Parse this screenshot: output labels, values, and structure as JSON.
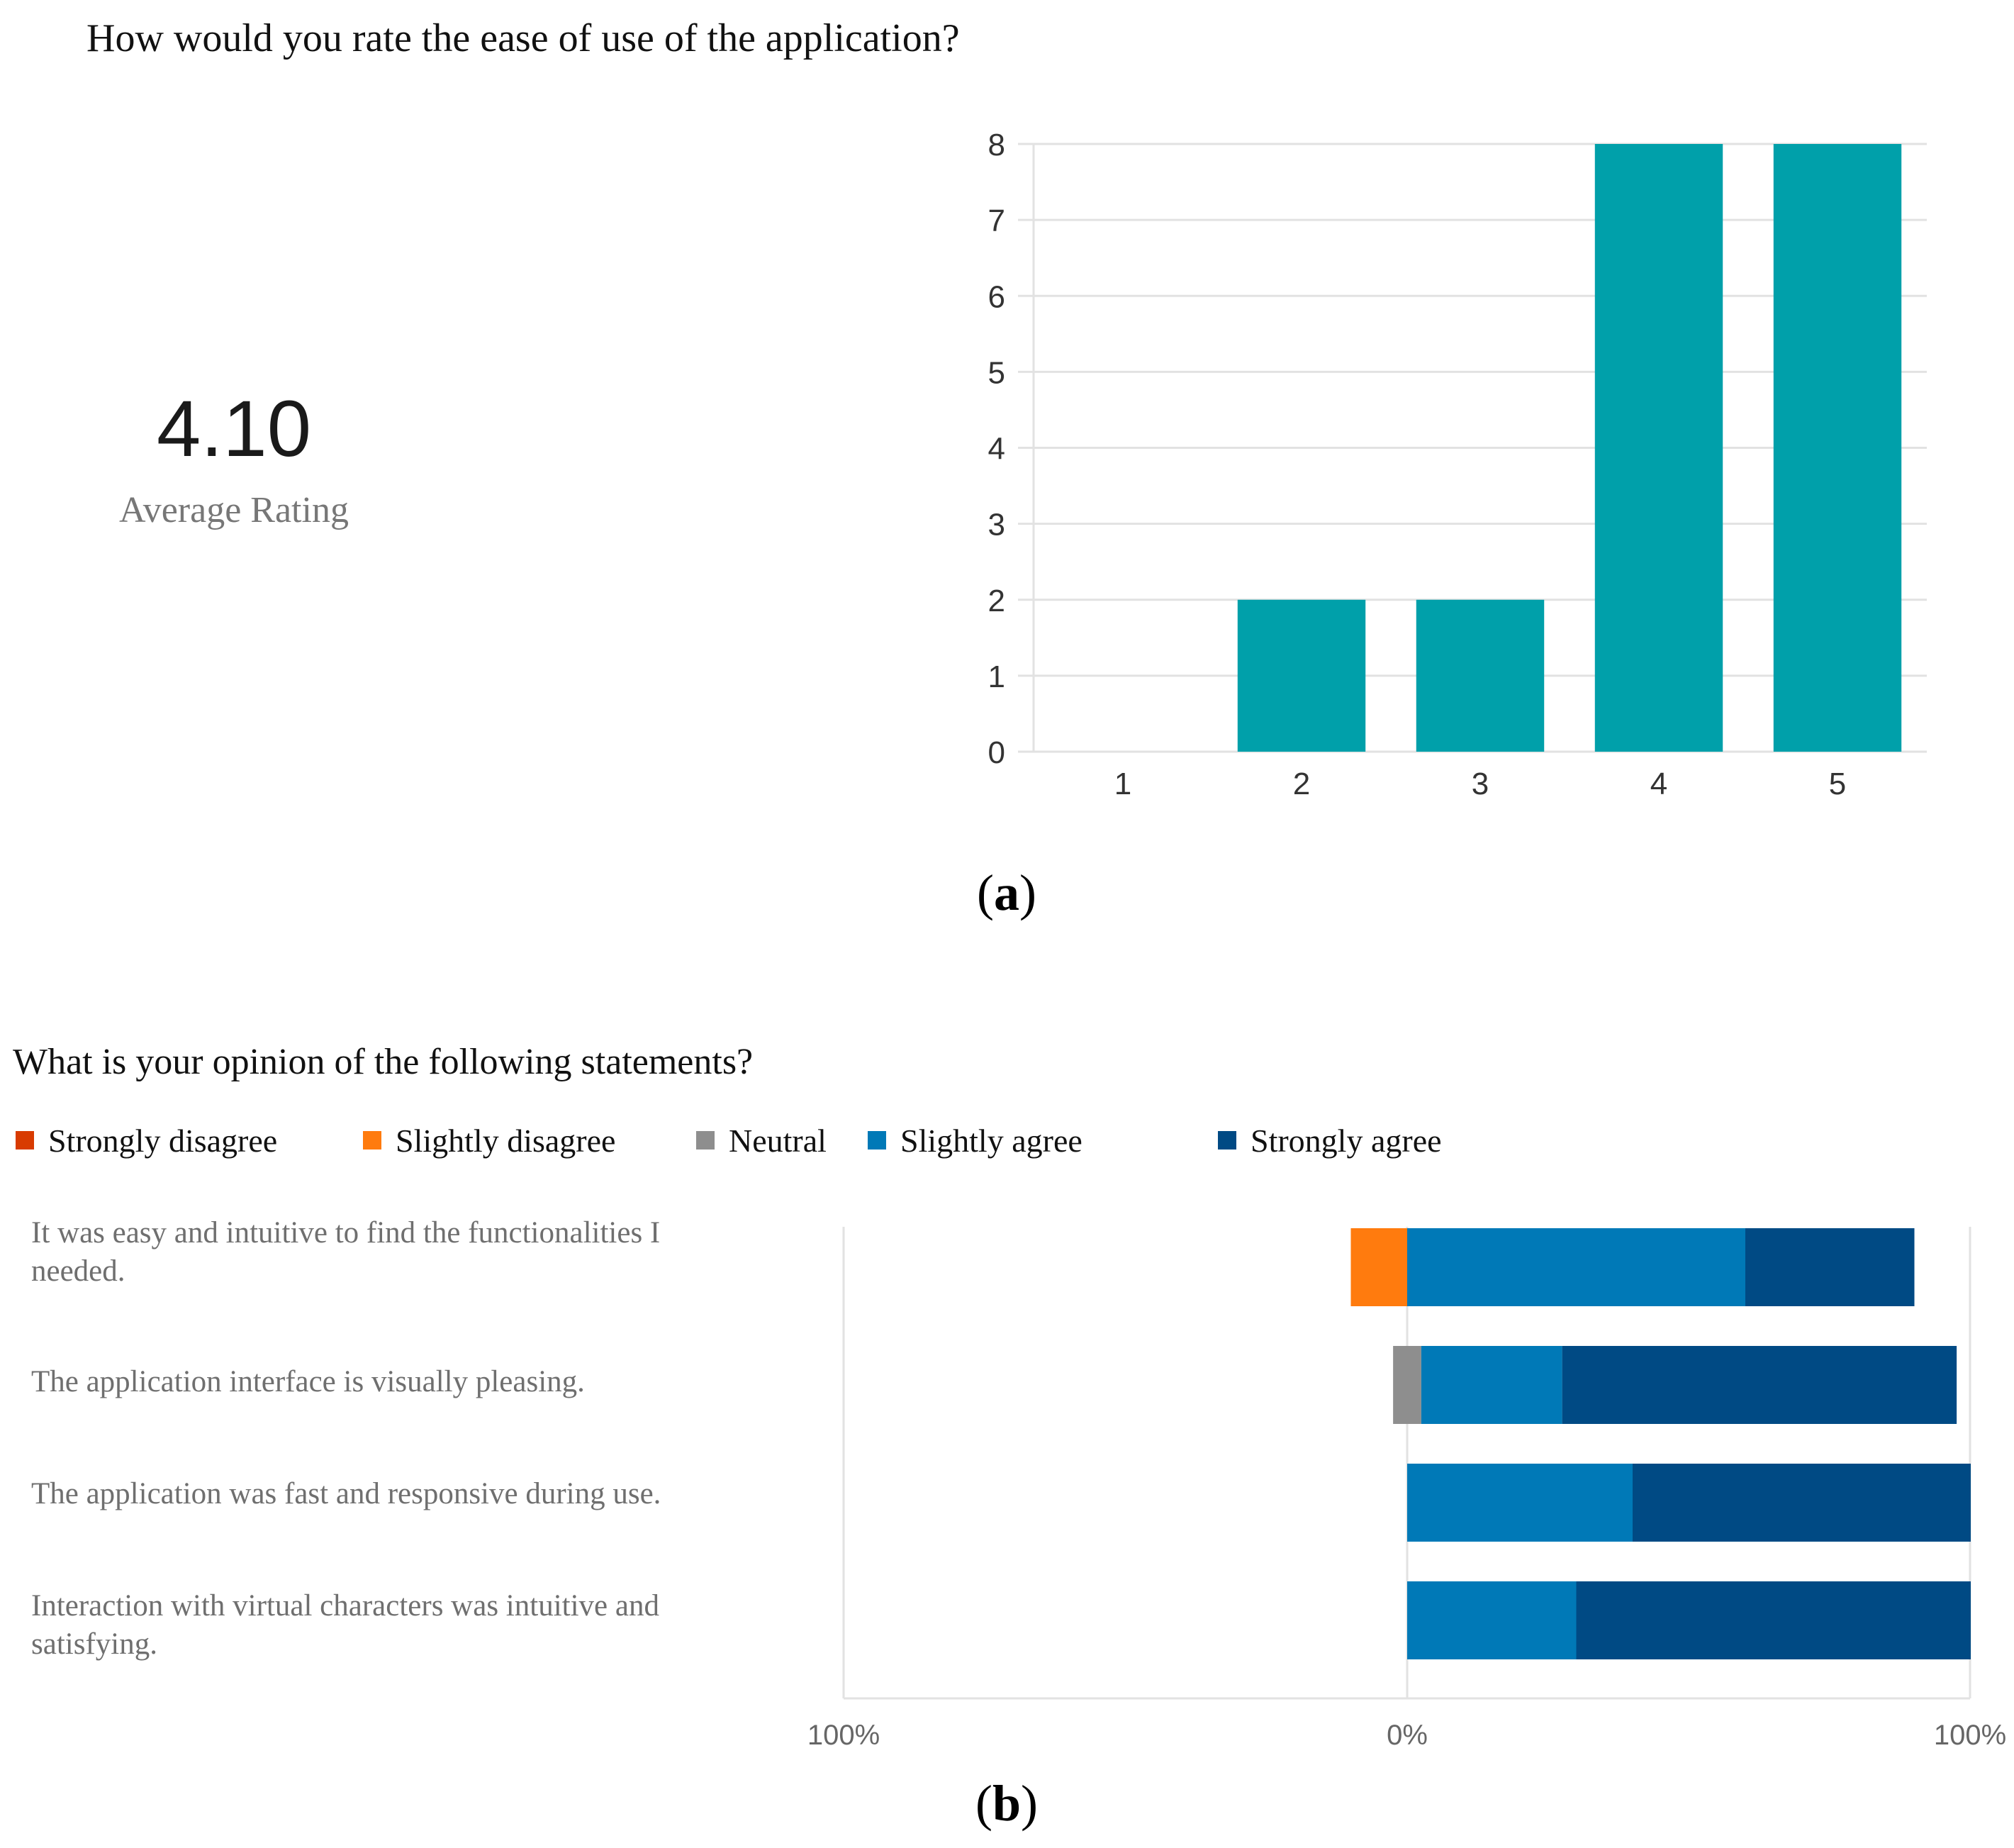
{
  "panel_a": {
    "title": "How would you rate the ease of use of the application?",
    "average_value": "4.10",
    "average_label": "Average Rating",
    "caption_open": "(",
    "caption_letter": "a",
    "caption_close": ")"
  },
  "panel_b": {
    "title": "What is your opinion of the following statements?",
    "caption_open": "(",
    "caption_letter": "b",
    "caption_close": ")"
  },
  "colors": {
    "bar_teal": "#00a0aa",
    "grid": "#e2e2e2",
    "strongly_disagree": "#d83b01",
    "slightly_disagree": "#ff7b0e",
    "neutral": "#8e8e8e",
    "slightly_agree": "#0079b7",
    "strongly_agree": "#004a84"
  },
  "chart_data": [
    {
      "type": "bar",
      "title": "How would you rate the ease of use of the application?",
      "categories": [
        "1",
        "2",
        "3",
        "4",
        "5"
      ],
      "values": [
        0,
        2,
        2,
        8,
        8
      ],
      "ylim": [
        0,
        8
      ],
      "yticks": [
        "0",
        "1",
        "2",
        "3",
        "4",
        "5",
        "6",
        "7",
        "8"
      ],
      "xlabel": "",
      "ylabel": "",
      "grid": true
    },
    {
      "type": "bar",
      "orientation": "horizontal-diverging",
      "title": "What is your opinion of the following statements?",
      "legend": [
        "Strongly disagree",
        "Slightly disagree",
        "Neutral",
        "Slightly agree",
        "Strongly agree"
      ],
      "legend_placement": "top",
      "categories": [
        "It was easy and intuitive to find the functionalities I needed.",
        "The application interface is visually pleasing.",
        "The application was fast and responsive during use.",
        "Interaction with virtual characters was intuitive and satisfying."
      ],
      "series": [
        {
          "name": "Strongly disagree",
          "values": [
            0,
            0,
            0,
            0
          ]
        },
        {
          "name": "Slightly disagree",
          "values": [
            10,
            0,
            0,
            0
          ]
        },
        {
          "name": "Neutral",
          "values": [
            0,
            5,
            0,
            0
          ]
        },
        {
          "name": "Slightly agree",
          "values": [
            60,
            25,
            40,
            30
          ]
        },
        {
          "name": "Strongly agree",
          "values": [
            30,
            70,
            60,
            70
          ]
        }
      ],
      "xticks": [
        "100%",
        "0%",
        "100%"
      ],
      "xlim": [
        -100,
        100
      ],
      "grid": true
    }
  ]
}
